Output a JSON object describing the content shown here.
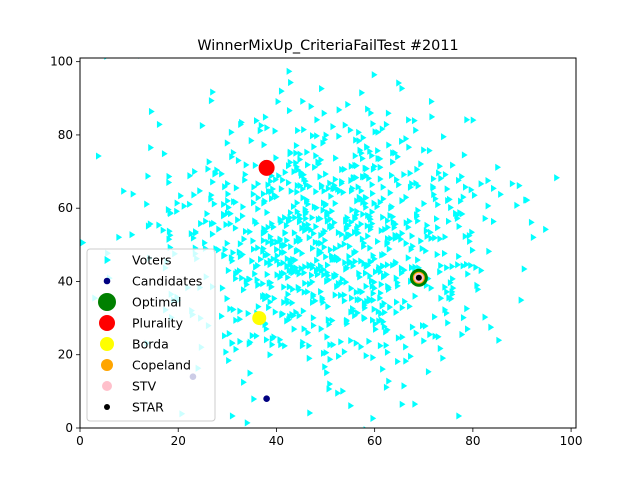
{
  "chart_data": {
    "type": "scatter",
    "title": "WinnerMixUp_CriteriaFailTest #2011",
    "xlim": [
      0,
      101
    ],
    "ylim": [
      0,
      101
    ],
    "x_ticks": [
      0,
      20,
      40,
      60,
      80,
      100
    ],
    "y_ticks": [
      0,
      20,
      40,
      60,
      80,
      100
    ],
    "x_tick_labels": [
      "0",
      "20",
      "40",
      "60",
      "80",
      "100"
    ],
    "y_tick_labels": [
      "0",
      "20",
      "40",
      "60",
      "80",
      "100"
    ],
    "grid": false,
    "legend_position": "lower-left",
    "voters": {
      "name": "Voters",
      "color": "#00ffff",
      "marker": "triangle-right",
      "count": 1000,
      "center": [
        50,
        50
      ],
      "spread": [
        17,
        18
      ],
      "seed": 2011
    },
    "candidates": {
      "name": "Candidates",
      "color": "#000080",
      "points": [
        [
          38,
          71
        ],
        [
          36.5,
          30
        ],
        [
          69,
          41
        ],
        [
          23,
          14
        ],
        [
          38,
          8
        ]
      ]
    },
    "winners": [
      {
        "name": "Optimal",
        "color": "#008000",
        "x": 69,
        "y": 41,
        "size": 9
      },
      {
        "name": "Plurality",
        "color": "#ff0000",
        "x": 38,
        "y": 71,
        "size": 8
      },
      {
        "name": "Borda",
        "color": "#ffff00",
        "x": 36.5,
        "y": 30,
        "size": 7
      },
      {
        "name": "Copeland",
        "color": "#ffa500",
        "x": 69,
        "y": 41,
        "size": 6
      },
      {
        "name": "STV",
        "color": "#ffc0cb",
        "x": 69,
        "y": 41,
        "size": 5
      },
      {
        "name": "STAR",
        "color": "#000000",
        "x": 69,
        "y": 41,
        "size": 3
      }
    ]
  }
}
